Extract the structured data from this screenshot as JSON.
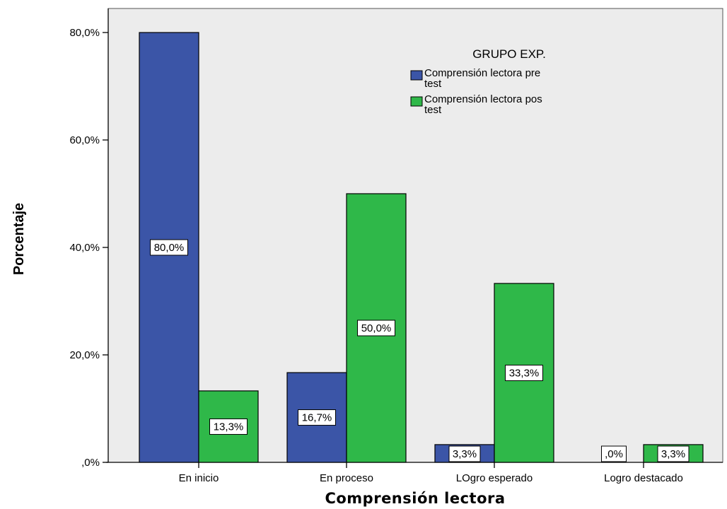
{
  "colors": {
    "plot_background": "#ececec",
    "pre_test": "#3b55a7",
    "pos_test": "#2fb849",
    "bar_outline": "#000000"
  },
  "chart_data": {
    "type": "bar",
    "title": "",
    "xlabel": "Comprensión lectora",
    "ylabel": "Porcentaje",
    "ylim": [
      0,
      85
    ],
    "yticks": [
      0,
      20,
      40,
      60,
      80
    ],
    "ytick_labels": [
      ",0%",
      "20,0%",
      "40,0%",
      "60,0%",
      "80,0%"
    ],
    "categories": [
      "En inicio",
      "En proceso",
      "LOgro esperado",
      "Logro destacado"
    ],
    "series": [
      {
        "name": "Comprensión lectora pre test",
        "legend_lines": [
          "Comprensión lectora pre",
          "test"
        ],
        "color": "#3b55a7",
        "values": [
          80.0,
          16.7,
          3.3,
          0.0
        ],
        "labels": [
          "80,0%",
          "16,7%",
          "3,3%",
          ",0%"
        ]
      },
      {
        "name": "Comprensión lectora pos test",
        "legend_lines": [
          "Comprensión lectora pos",
          "test"
        ],
        "color": "#2fb849",
        "values": [
          13.3,
          50.0,
          33.3,
          3.3
        ],
        "labels": [
          "13,3%",
          "50,0%",
          "33,3%",
          "3,3%"
        ]
      }
    ],
    "legend_title": "GRUPO EXP.",
    "legend_position": "top-right",
    "grid": false
  }
}
